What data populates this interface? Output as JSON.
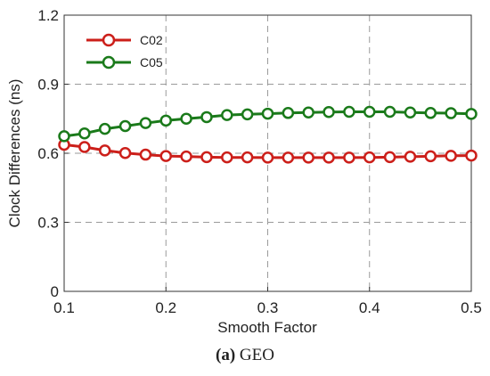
{
  "chart_data": {
    "type": "line",
    "title": "",
    "xlabel": "Smooth Factor",
    "ylabel": "Clock Differences (ns)",
    "xlim": [
      0.1,
      0.5
    ],
    "ylim": [
      0,
      1.2
    ],
    "xticks": [
      "0.1",
      "0.2",
      "0.3",
      "0.4",
      "0.5"
    ],
    "yticks": [
      "0",
      "0.3",
      "0.6",
      "0.9",
      "1.2"
    ],
    "grid": true,
    "legend_position": "top-left",
    "x": [
      0.1,
      0.12,
      0.14,
      0.16,
      0.18,
      0.2,
      0.22,
      0.24,
      0.26,
      0.28,
      0.3,
      0.32,
      0.34,
      0.36,
      0.38,
      0.4,
      0.42,
      0.44,
      0.46,
      0.48,
      0.5
    ],
    "series": [
      {
        "name": "C02",
        "color": "#cc1f1a",
        "values": [
          0.637,
          0.627,
          0.612,
          0.601,
          0.594,
          0.588,
          0.586,
          0.583,
          0.582,
          0.582,
          0.581,
          0.581,
          0.581,
          0.581,
          0.581,
          0.582,
          0.583,
          0.585,
          0.587,
          0.589,
          0.59
        ]
      },
      {
        "name": "C05",
        "color": "#1a7a1a",
        "values": [
          0.674,
          0.686,
          0.706,
          0.718,
          0.731,
          0.742,
          0.75,
          0.757,
          0.766,
          0.769,
          0.772,
          0.775,
          0.777,
          0.779,
          0.78,
          0.78,
          0.78,
          0.777,
          0.775,
          0.774,
          0.771
        ]
      }
    ]
  },
  "caption": {
    "label": "(a)",
    "text": " GEO"
  }
}
